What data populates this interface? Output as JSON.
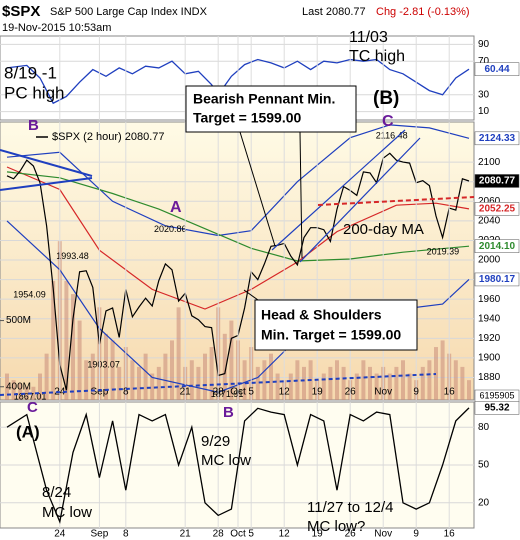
{
  "header": {
    "symbol": "$SPX",
    "name": "S&P 500 Large Cap Index INDX",
    "timestamp": "19-Nov-2015 10:53am",
    "last": "Last 2080.77",
    "change": "Chg -2.81 (-0.13%)"
  },
  "chart_data": [
    {
      "type": "line",
      "color": "#1f3fbf",
      "ylim": [
        0,
        100
      ],
      "yticks": [
        10,
        30,
        70,
        90
      ],
      "grid": true,
      "x": [
        0,
        3,
        5,
        7,
        9,
        11,
        13,
        15,
        17,
        19,
        21,
        23,
        25,
        27,
        29,
        31,
        32,
        34,
        36,
        38,
        40,
        42,
        44,
        46,
        48,
        50,
        52,
        54,
        56,
        58,
        60,
        62,
        64,
        66,
        68,
        70
      ],
      "values": [
        62,
        65,
        50,
        20,
        28,
        45,
        60,
        52,
        62,
        55,
        64,
        62,
        70,
        55,
        58,
        42,
        30,
        52,
        66,
        72,
        68,
        62,
        70,
        60,
        70,
        68,
        72,
        70,
        72,
        60,
        55,
        45,
        35,
        30,
        50,
        60.44
      ]
    },
    {
      "type": "line",
      "legend": "$SPX (2 hour) 2080.77",
      "ylim": [
        1857,
        2141
      ],
      "yticks": [
        1880,
        1900,
        1920,
        1940,
        1960,
        1980,
        2000,
        2020,
        2040,
        2060,
        2080,
        2100
      ],
      "grid": true,
      "categories": [
        null,
        null,
        null,
        null,
        null,
        null,
        null,
        null,
        "24",
        null,
        null,
        null,
        null,
        null,
        "Sep",
        null,
        null,
        null,
        "8",
        null,
        null,
        null,
        null,
        null,
        null,
        null,
        null,
        "21",
        null,
        null,
        null,
        null,
        "28",
        null,
        null,
        "Oct",
        null,
        "5",
        null,
        null,
        null,
        null,
        "12",
        null,
        null,
        null,
        null,
        "19",
        null,
        null,
        null,
        null,
        "26",
        null,
        null,
        null,
        null,
        "Nov",
        null,
        null,
        null,
        null,
        "9",
        null,
        null,
        null,
        null,
        "16",
        null,
        null,
        null
      ],
      "series": [
        {
          "color": "#000000",
          "values": [
            2086,
            2083,
            2091,
            2102,
            2096,
            2079,
            2035,
            1971,
            1893,
            1867,
            1940,
            1988,
            1989,
            1972,
            1914,
            1948,
            1951,
            1921,
            1970,
            1942,
            1952,
            1961,
            1953,
            1979,
            1996,
            1990,
            1958,
            1966,
            1943,
            1939,
            1932,
            1931,
            1882,
            1884,
            1920,
            1923,
            1951,
            1988,
            1980,
            1996,
            2014,
            2015,
            2017,
            2004,
            1995,
            2023,
            2033,
            2033,
            2031,
            2019,
            2052,
            2075,
            2071,
            2066,
            2090,
            2089,
            2079,
            2104,
            2109,
            2102,
            2100,
            2099,
            2079,
            2081,
            2076,
            2045,
            2023,
            2053,
            2051,
            2083,
            2080.77
          ]
        }
      ],
      "overlays": [
        {
          "color": "#1f3fbf",
          "x": [
            0,
            8,
            16,
            24,
            32,
            37,
            44,
            52,
            58,
            64,
            70
          ],
          "values": [
            2105,
            2110,
            2060,
            2035,
            2025,
            2030,
            2080,
            2125,
            2138,
            2135,
            2124.33
          ]
        },
        {
          "color": "#d62728",
          "x": [
            0,
            8,
            14,
            22,
            30,
            37,
            44,
            50,
            59,
            65,
            70
          ],
          "values": [
            2095,
            2072,
            2010,
            1970,
            1950,
            1970,
            1998,
            2029,
            2056,
            2058,
            2052.25
          ]
        },
        {
          "color": "#2e8b2e",
          "x": [
            0,
            8,
            16,
            23,
            30,
            37,
            44,
            52,
            60,
            70
          ],
          "values": [
            2090,
            2084,
            2068,
            2052,
            2032,
            2012,
            1999,
            2001,
            2008,
            2014.1
          ],
          "value_labels": [
            null,
            null,
            null,
            null,
            null,
            null,
            null,
            null,
            null,
            "2014.10"
          ]
        },
        {
          "color": "#1f3fbf",
          "x": [
            0,
            8,
            14,
            22,
            32,
            38,
            44,
            52,
            60,
            66,
            70
          ],
          "values": [
            2040,
            1990,
            1930,
            1880,
            1865,
            1880,
            1920,
            1950,
            1950,
            1955,
            1980.17
          ]
        }
      ],
      "volume": {
        "color": "#c98a78",
        "ylim": [
          380,
          800
        ],
        "yticks": [
          {
            "value": 400,
            "label": "400M"
          },
          {
            "value": 500,
            "label": "500M"
          }
        ],
        "readout": "6195905",
        "values": [
          420,
          410,
          405,
          400,
          400,
          420,
          450,
          560,
          620,
          560,
          540,
          500,
          440,
          450,
          520,
          480,
          470,
          430,
          460,
          440,
          430,
          450,
          420,
          430,
          450,
          470,
          520,
          430,
          440,
          430,
          450,
          460,
          520,
          480,
          500,
          470,
          440,
          460,
          430,
          440,
          450,
          420,
          410,
          420,
          440,
          430,
          440,
          410,
          420,
          430,
          440,
          430,
          410,
          420,
          440,
          430,
          420,
          430,
          420,
          430,
          440,
          420,
          410,
          430,
          440,
          460,
          470,
          450,
          440,
          430,
          410
        ]
      },
      "extremes": [
        {
          "x": 58,
          "value": 2116.48
        },
        {
          "x": 25,
          "value": 2020.86
        },
        {
          "x": 12,
          "value": 1993.48
        },
        {
          "x": 7,
          "value": 1954.09
        },
        {
          "x": 14,
          "value": 1903.07
        },
        {
          "x": 8,
          "value": 1867.01
        },
        {
          "x": 33,
          "value": 1871.91
        },
        {
          "x": 66,
          "value": 2019.39
        }
      ]
    },
    {
      "type": "line",
      "color": "#000000",
      "ylim": [
        0,
        100
      ],
      "yticks": [
        20,
        50,
        80
      ],
      "grid": true,
      "x": [
        0,
        3,
        6,
        8,
        10,
        12,
        14,
        16,
        18,
        20,
        22,
        24,
        26,
        28,
        30,
        32,
        34,
        36,
        38,
        40,
        42,
        44,
        46,
        48,
        50,
        52,
        54,
        56,
        58,
        60,
        62,
        64,
        66,
        68,
        70
      ],
      "values": [
        80,
        90,
        30,
        5,
        60,
        90,
        40,
        85,
        30,
        90,
        85,
        90,
        50,
        80,
        20,
        10,
        15,
        85,
        95,
        92,
        90,
        50,
        90,
        85,
        30,
        90,
        85,
        92,
        90,
        20,
        15,
        20,
        50,
        85,
        95.32
      ]
    }
  ],
  "annotations": [
    {
      "lines": [
        "8/19 -1",
        "PC high"
      ]
    },
    {
      "lines": [
        "11/03",
        "TC high"
      ]
    },
    {
      "lines": [
        "(B)"
      ]
    },
    {
      "lines": [
        "B"
      ],
      "color": "#6a1b9a"
    },
    {
      "lines": [
        "Bearish Pennant Min.",
        "Target = 1599.00"
      ]
    },
    {
      "lines": [
        "A"
      ],
      "color": "#6a1b9a"
    },
    {
      "lines": [
        "C"
      ],
      "color": "#6a1b9a"
    },
    {
      "lines": [
        "200-day MA"
      ]
    },
    {
      "lines": [
        "Head & Shoulders",
        "Min. Target = 1599.00"
      ]
    },
    {
      "lines": [
        "C"
      ],
      "color": "#6a1b9a"
    },
    {
      "lines": [
        "(A)"
      ]
    },
    {
      "lines": [
        "B"
      ],
      "color": "#6a1b9a"
    },
    {
      "lines": [
        "9/29",
        "MC low"
      ]
    },
    {
      "lines": [
        "8/24",
        "MC low"
      ]
    },
    {
      "lines": [
        "11/27 to 12/4",
        "MC low?"
      ]
    }
  ]
}
